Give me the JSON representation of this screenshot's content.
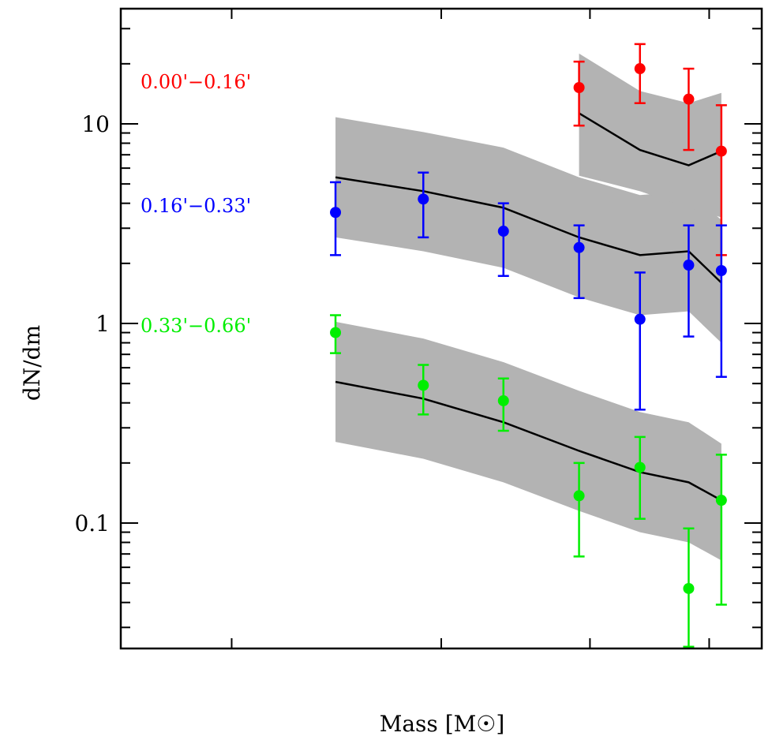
{
  "chart_data": {
    "type": "scatter",
    "title": "",
    "xlabel": "Mass [M☉]",
    "ylabel": "dN/dm",
    "yscale": "log",
    "ylim": [
      0.025,
      35
    ],
    "xlim": [
      0,
      1
    ],
    "x_note": "x-axis tick labels not visible; x given as relative position along axis",
    "y_ticks": [
      {
        "value": 10,
        "label": "10"
      },
      {
        "value": 1,
        "label": "1"
      },
      {
        "value": 0.1,
        "label": "0.1"
      }
    ],
    "x_ticks": [
      0.173,
      0.5,
      0.732,
      0.918
    ],
    "grid": false,
    "legend_placement": "left, inside",
    "band_color": "#b3b3b3",
    "model_line_color": "#000000",
    "series": [
      {
        "name": "0.00'−0.16'",
        "color": "#ff0000",
        "x": [
          0.715,
          0.81,
          0.886,
          0.937
        ],
        "values": [
          15.2,
          18.9,
          13.3,
          7.3
        ],
        "err_high": [
          20.5,
          25.1,
          18.9,
          12.4
        ],
        "err_low": [
          9.8,
          12.7,
          7.4,
          2.2
        ],
        "model": [
          11.3,
          7.4,
          6.2,
          7.3
        ],
        "band_high": [
          22.5,
          14.6,
          12.7,
          14.3
        ],
        "band_low": [
          5.5,
          4.6,
          3.8,
          3.4
        ]
      },
      {
        "name": "0.16'−0.33'",
        "color": "#0000ff",
        "x": [
          0.335,
          0.472,
          0.597,
          0.715,
          0.81,
          0.886,
          0.937
        ],
        "values": [
          3.6,
          4.2,
          2.9,
          2.4,
          1.05,
          1.96,
          1.84
        ],
        "err_high": [
          5.1,
          5.7,
          4.0,
          3.1,
          1.8,
          3.1,
          3.1
        ],
        "err_low": [
          2.2,
          2.7,
          1.73,
          1.34,
          0.37,
          0.86,
          0.54
        ],
        "model": [
          5.4,
          4.6,
          3.8,
          2.7,
          2.2,
          2.3,
          1.6
        ],
        "band_high": [
          10.8,
          9.1,
          7.6,
          5.4,
          4.4,
          4.6,
          3.3
        ],
        "band_low": [
          2.7,
          2.3,
          1.9,
          1.35,
          1.1,
          1.15,
          0.8
        ]
      },
      {
        "name": "0.33'−0.66'",
        "color": "#00ee00",
        "x": [
          0.335,
          0.472,
          0.597,
          0.715,
          0.81,
          0.886,
          0.937
        ],
        "values": [
          0.9,
          0.49,
          0.41,
          0.137,
          0.19,
          0.047,
          0.13
        ],
        "err_high": [
          1.1,
          0.62,
          0.53,
          0.2,
          0.27,
          0.094,
          0.22
        ],
        "err_low": [
          0.71,
          0.35,
          0.29,
          0.068,
          0.105,
          0.024,
          0.039
        ],
        "model": [
          0.51,
          0.42,
          0.32,
          0.23,
          0.18,
          0.16,
          0.13
        ],
        "band_high": [
          1.02,
          0.84,
          0.64,
          0.46,
          0.36,
          0.32,
          0.25
        ],
        "band_low": [
          0.255,
          0.21,
          0.16,
          0.115,
          0.09,
          0.08,
          0.065
        ]
      }
    ]
  }
}
